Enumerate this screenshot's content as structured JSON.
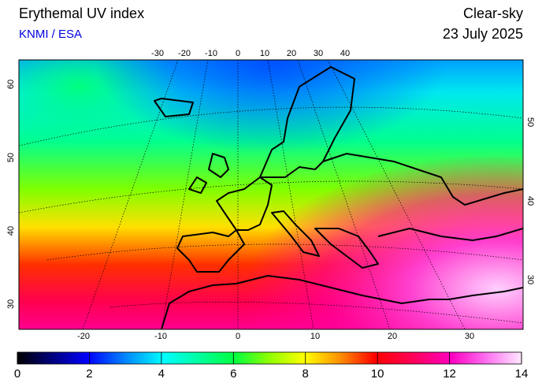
{
  "header": {
    "title": "Erythemal UV index",
    "source": "KNMI / ESA",
    "condition": "Clear-sky",
    "date": "23 July 2025"
  },
  "map": {
    "top_lon_labels": [
      -30,
      -20,
      -10,
      0,
      10,
      20,
      30,
      40
    ],
    "bottom_lon_labels": [
      -20,
      -10,
      0,
      10,
      20,
      30
    ],
    "left_lat_labels": [
      60,
      50,
      40,
      30
    ],
    "right_lat_labels": [
      50,
      40,
      30
    ]
  },
  "colorbar": {
    "lim": [
      0,
      14
    ],
    "ticks": [
      0,
      2,
      4,
      6,
      8,
      10,
      12,
      14
    ]
  }
}
